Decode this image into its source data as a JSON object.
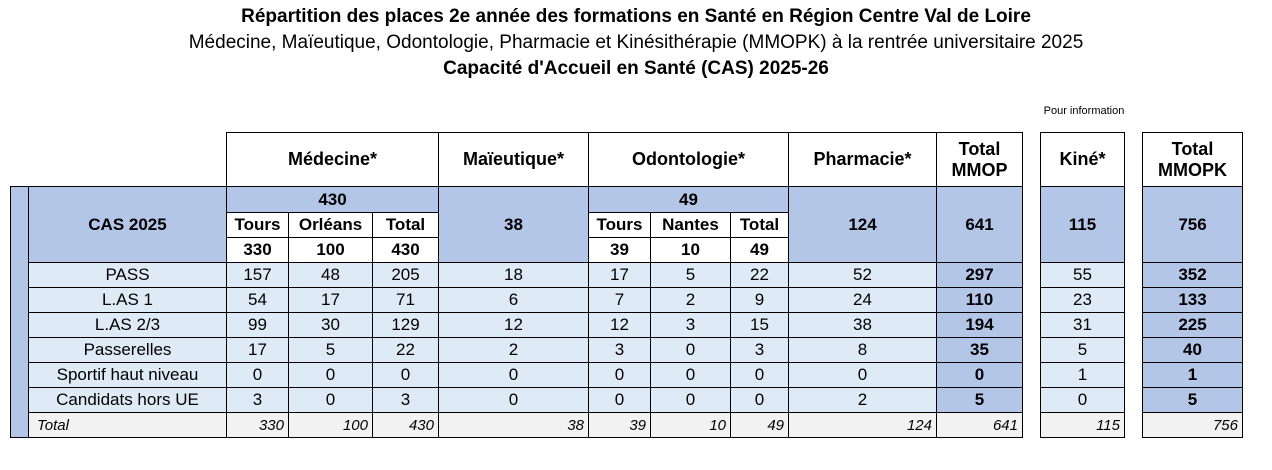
{
  "title": {
    "line1": "Répartition des places 2e année des formations en Santé en Région Centre Val de Loire",
    "line2": "Médecine, Maïeutique, Odontologie, Pharmacie et Kinésithérapie (MMOPK) à la rentrée universitaire 2025",
    "line3": "Capacité d'Accueil en Santé (CAS) 2025-26"
  },
  "note_kine": "Pour information",
  "headers": {
    "medecine": "Médecine*",
    "maieutique": "Maïeutique*",
    "odontologie": "Odontologie*",
    "pharmacie": "Pharmacie*",
    "total_mmop": "Total MMOP",
    "kine": "Kiné*",
    "total_mmopk": "Total MMOPK"
  },
  "cas": {
    "label": "CAS 2025",
    "medecine_total": "430",
    "odontologie_total": "49",
    "sub_tours": "Tours",
    "sub_orleans": "Orléans",
    "sub_nantes": "Nantes",
    "sub_total": "Total",
    "med_tours": "330",
    "med_orleans": "100",
    "med_total": "430",
    "maieutique": "38",
    "odo_tours": "39",
    "odo_nantes": "10",
    "odo_total": "49",
    "pharmacie": "124",
    "total_mmop": "641",
    "kine": "115",
    "total_mmopk": "756"
  },
  "rows": [
    {
      "label": "PASS",
      "v": [
        "157",
        "48",
        "205",
        "18",
        "17",
        "5",
        "22",
        "52",
        "297",
        "55",
        "352"
      ]
    },
    {
      "label": "L.AS 1",
      "v": [
        "54",
        "17",
        "71",
        "6",
        "7",
        "2",
        "9",
        "24",
        "110",
        "23",
        "133"
      ]
    },
    {
      "label": "L.AS 2/3",
      "v": [
        "99",
        "30",
        "129",
        "12",
        "12",
        "3",
        "15",
        "38",
        "194",
        "31",
        "225"
      ]
    },
    {
      "label": "Passerelles",
      "v": [
        "17",
        "5",
        "22",
        "2",
        "3",
        "0",
        "3",
        "8",
        "35",
        "5",
        "40"
      ]
    },
    {
      "label": "Sportif haut niveau",
      "v": [
        "0",
        "0",
        "0",
        "0",
        "0",
        "0",
        "0",
        "0",
        "0",
        "1",
        "1"
      ]
    },
    {
      "label": "Candidats hors UE",
      "v": [
        "3",
        "0",
        "3",
        "0",
        "0",
        "0",
        "0",
        "2",
        "5",
        "0",
        "5"
      ]
    }
  ],
  "total_row": {
    "label": "Total",
    "v": [
      "330",
      "100",
      "430",
      "38",
      "39",
      "10",
      "49",
      "124",
      "641",
      "115",
      "756"
    ]
  }
}
